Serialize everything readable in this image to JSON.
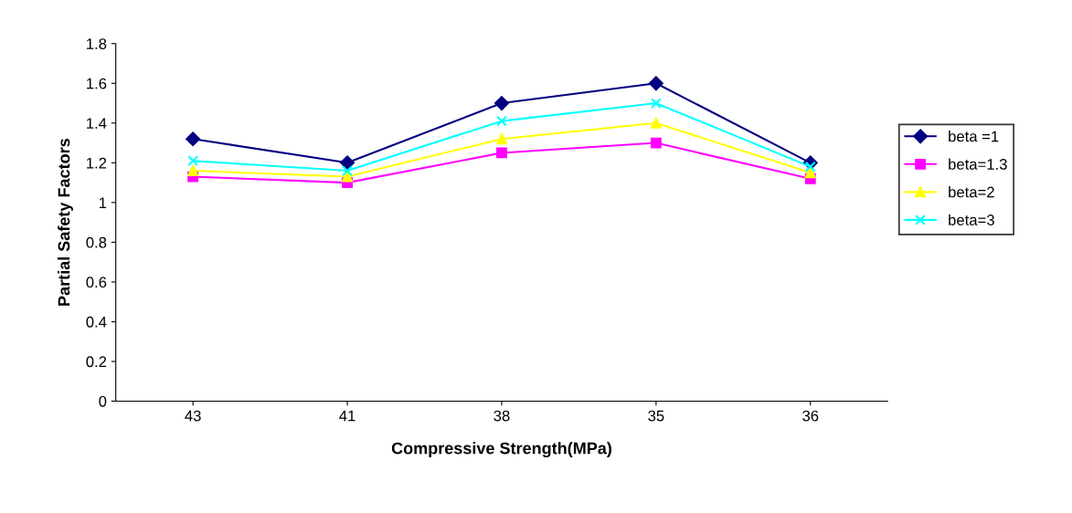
{
  "chart_data": {
    "type": "line",
    "xlabel": "Compressive Strength(MPa)",
    "ylabel": "Partial Safety Factors",
    "categories": [
      "43",
      "41",
      "38",
      "35",
      "36"
    ],
    "series": [
      {
        "name": "beta =1",
        "color": "#000080",
        "marker": "diamond",
        "values": [
          1.32,
          1.2,
          1.5,
          1.6,
          1.2
        ]
      },
      {
        "name": "beta=1.3",
        "color": "#ff00ff",
        "marker": "square",
        "values": [
          1.13,
          1.1,
          1.25,
          1.3,
          1.12
        ]
      },
      {
        "name": "beta=2",
        "color": "#ffff00",
        "marker": "triangle",
        "values": [
          1.16,
          1.13,
          1.32,
          1.4,
          1.15
        ]
      },
      {
        "name": "beta=3",
        "color": "#00ffff",
        "marker": "cross",
        "values": [
          1.21,
          1.16,
          1.41,
          1.5,
          1.18
        ]
      }
    ],
    "ylim": [
      0,
      1.8
    ],
    "yticks": [
      0,
      0.2,
      0.4,
      0.6,
      0.8,
      1,
      1.2,
      1.4,
      1.6,
      1.8
    ],
    "grid": false,
    "legend": "right"
  }
}
